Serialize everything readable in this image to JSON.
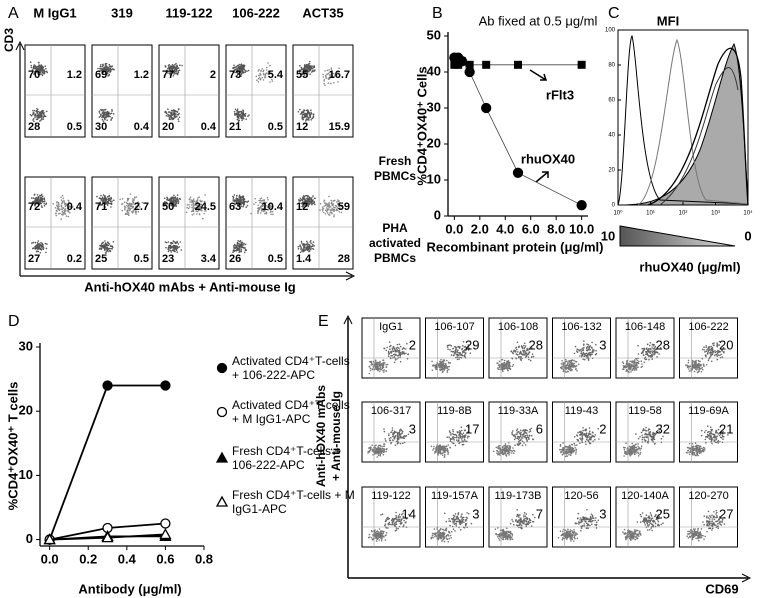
{
  "panel_labels": [
    "A",
    "B",
    "C",
    "D",
    "E"
  ],
  "panel_a": {
    "column_labels": [
      "M IgG1",
      "319",
      "119-122",
      "106-222",
      "ACT35"
    ],
    "y_axis_label": "CD3",
    "x_axis_label": "Anti-hOX40 mAbs + Anti-mouse Ig",
    "rows": [
      {
        "label_lines": [
          "Fresh",
          "PBMCs"
        ],
        "quadrants": [
          [
            "70",
            "1.2",
            "28",
            "0.5"
          ],
          [
            "69",
            "1.2",
            "30",
            "0.4"
          ],
          [
            "77",
            "2",
            "20",
            "0.4"
          ],
          [
            "73",
            "5.4",
            "21",
            "0.5"
          ],
          [
            "55",
            "16.7",
            "12",
            "15.9"
          ]
        ]
      },
      {
        "label_lines": [
          "PHA",
          "activated",
          "PBMCs"
        ],
        "quadrants": [
          [
            "72",
            "0.4",
            "27",
            "0.2"
          ],
          [
            "71",
            "2.7",
            "25",
            "0.5"
          ],
          [
            "50",
            "24.5",
            "23",
            "3.4"
          ],
          [
            "63",
            "10.4",
            "26",
            "0.5"
          ],
          [
            "12",
            "59",
            "1.4",
            "28"
          ]
        ]
      }
    ]
  },
  "panel_c": {
    "title": "MFI",
    "yticks": [
      "0",
      "20",
      "40",
      "60",
      "80",
      "100"
    ],
    "xticks": [
      "10⁰",
      "10¹",
      "10²",
      "10³",
      "10⁴"
    ],
    "gradient_start": "10",
    "gradient_end": "0",
    "x_axis_label": "rhuOX40 (μg/ml)"
  },
  "panel_e": {
    "y_axis_label_lines": [
      "Anti-hOX40 mAbs",
      "+ Anti-mouse Ig"
    ],
    "x_axis_label": "CD69",
    "rows": [
      [
        {
          "name": "IgG1",
          "value": "2"
        },
        {
          "name": "106-107",
          "value": "29"
        },
        {
          "name": "106-108",
          "value": "28"
        },
        {
          "name": "106-132",
          "value": "3"
        },
        {
          "name": "106-148",
          "value": "28"
        },
        {
          "name": "106-222",
          "value": "20"
        }
      ],
      [
        {
          "name": "106-317",
          "value": "3"
        },
        {
          "name": "119-8B",
          "value": "17"
        },
        {
          "name": "119-33A",
          "value": "6"
        },
        {
          "name": "119-43",
          "value": "2"
        },
        {
          "name": "119-58",
          "value": "32"
        },
        {
          "name": "119-69A",
          "value": "21"
        }
      ],
      [
        {
          "name": "119-122",
          "value": "14"
        },
        {
          "name": "119-157A",
          "value": "3"
        },
        {
          "name": "119-173B",
          "value": "7"
        },
        {
          "name": "120-56",
          "value": "3"
        },
        {
          "name": "120-140A",
          "value": "25"
        },
        {
          "name": "120-270",
          "value": "27"
        }
      ]
    ]
  },
  "chart_data": [
    {
      "type": "line",
      "title": "Ab fixed at 0.5 μg/ml",
      "y_label": "%CD4⁺OX40⁺ Cells",
      "x_label": "Recombinant protein (μg/ml)",
      "x": [
        0,
        0.1,
        0.3,
        0.6,
        1.2,
        2.5,
        5,
        10
      ],
      "xlim": [
        -0.5,
        10.5
      ],
      "xticks": [
        {
          "value": 0,
          "label": "0.0"
        },
        {
          "value": 2,
          "label": "2.0"
        },
        {
          "value": 4,
          "label": "4.0"
        },
        {
          "value": 6,
          "label": "6.0"
        },
        {
          "value": 8,
          "label": "8.0"
        },
        {
          "value": 10,
          "label": "10.0"
        }
      ],
      "ylim": [
        0,
        50
      ],
      "yticks": [
        0,
        10,
        20,
        30,
        40,
        50
      ],
      "series": [
        {
          "name": "rFlt3",
          "marker": "square",
          "color": "#000000",
          "values": [
            42,
            43,
            42,
            43,
            42,
            42,
            42,
            42
          ]
        },
        {
          "name": "rhuOX40",
          "marker": "circle",
          "color": "#000000",
          "values": [
            44,
            43,
            44,
            43,
            40,
            30,
            12,
            3
          ]
        }
      ]
    },
    {
      "type": "line",
      "y_label": "%CD4⁺OX40⁺ T cells",
      "x_label": "Antibody (μg/ml)",
      "x": [
        0,
        0.3,
        0.6
      ],
      "xlim": [
        -0.05,
        0.8
      ],
      "xticks": [
        {
          "value": 0,
          "label": "0.0"
        },
        {
          "value": 0.2,
          "label": "0.2"
        },
        {
          "value": 0.4,
          "label": "0.4"
        },
        {
          "value": 0.6,
          "label": "0.6"
        },
        {
          "value": 0.8,
          "label": "0.8"
        }
      ],
      "ylim": [
        -1,
        30
      ],
      "yticks": [
        0,
        10,
        20,
        30
      ],
      "series": [
        {
          "name": "Activated CD4⁺T-cells + 106-222-APC",
          "marker": "circle",
          "color": "#000000",
          "values": [
            0,
            24,
            24
          ]
        },
        {
          "name": "Activated CD4⁺T-cells + M IgG1-APC",
          "marker": "open-circle",
          "color": "#000000",
          "values": [
            0,
            1.8,
            2.5
          ]
        },
        {
          "name": "Fresh CD4⁺T-cells + 106-222-APC",
          "marker": "triangle",
          "color": "#000000",
          "values": [
            0,
            0.5,
            0.5
          ]
        },
        {
          "name": "Fresh CD4⁺T-cells + M IgG1-APC",
          "marker": "open-triangle",
          "color": "#000000",
          "values": [
            0,
            0.3,
            0.8
          ]
        }
      ]
    }
  ]
}
